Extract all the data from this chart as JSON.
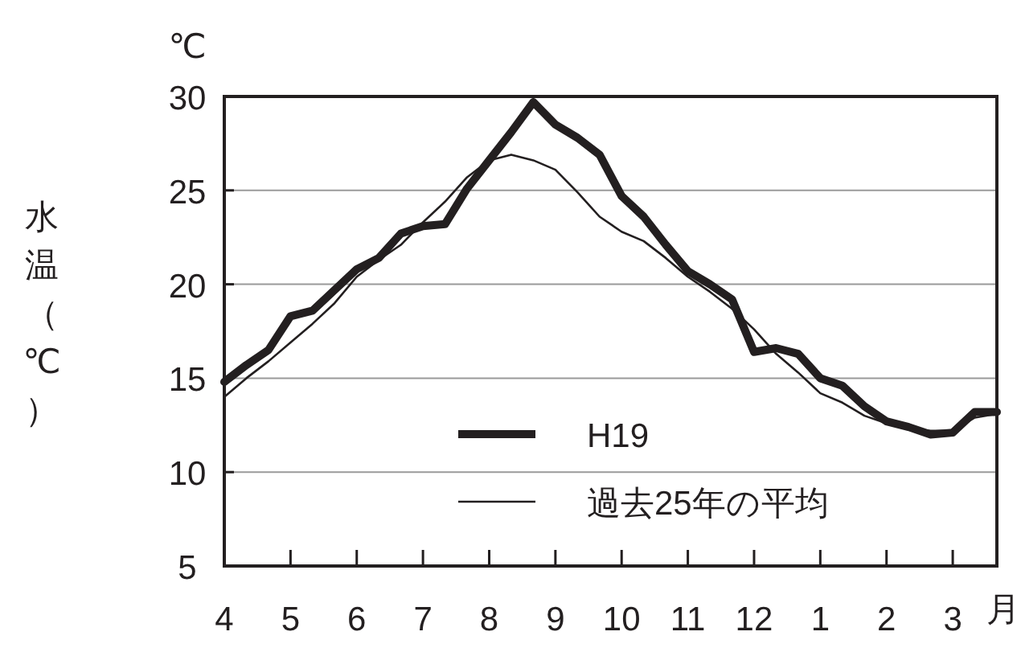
{
  "chart_data": {
    "type": "line",
    "ylabel": "水温（℃）",
    "xlabel": "月",
    "annotations": [
      "℃"
    ],
    "categories": [
      "4",
      null,
      null,
      "5",
      null,
      null,
      "6",
      null,
      null,
      "7",
      null,
      null,
      "8",
      null,
      null,
      "9",
      null,
      null,
      "10",
      null,
      null,
      "11",
      null,
      null,
      "12",
      null,
      null,
      "1",
      null,
      null,
      "2",
      null,
      null,
      "3",
      null,
      null
    ],
    "ylim": [
      5,
      30
    ],
    "yticks": [
      5,
      10,
      15,
      20,
      25,
      30
    ],
    "grid": "y",
    "legend": "bottom",
    "marker": "none",
    "line_style": "solid",
    "series": [
      {
        "name": "H19",
        "color": "#231f20",
        "values": [
          14.8,
          15.7,
          16.5,
          18.3,
          18.6,
          19.7,
          20.8,
          21.4,
          22.7,
          23.1,
          23.2,
          25.1,
          26.6,
          28.1,
          29.7,
          28.5,
          27.8,
          26.9,
          24.7,
          23.6,
          22.1,
          20.7,
          20.0,
          19.2,
          16.4,
          16.6,
          16.3,
          15.0,
          14.6,
          13.5,
          12.7,
          12.4,
          12.0,
          12.1,
          13.2,
          13.2
        ]
      },
      {
        "name": "過去25年の平均",
        "color": "#231f20",
        "values": [
          14.0,
          15.0,
          15.9,
          16.9,
          17.9,
          19.0,
          20.4,
          21.3,
          22.1,
          23.3,
          24.4,
          25.7,
          26.6,
          26.9,
          26.6,
          26.1,
          24.9,
          23.6,
          22.8,
          22.3,
          21.4,
          20.4,
          19.6,
          18.7,
          17.6,
          16.3,
          15.3,
          14.2,
          13.7,
          13.0,
          12.6,
          12.3,
          12.2,
          12.2,
          12.9,
          13.1
        ]
      }
    ]
  }
}
